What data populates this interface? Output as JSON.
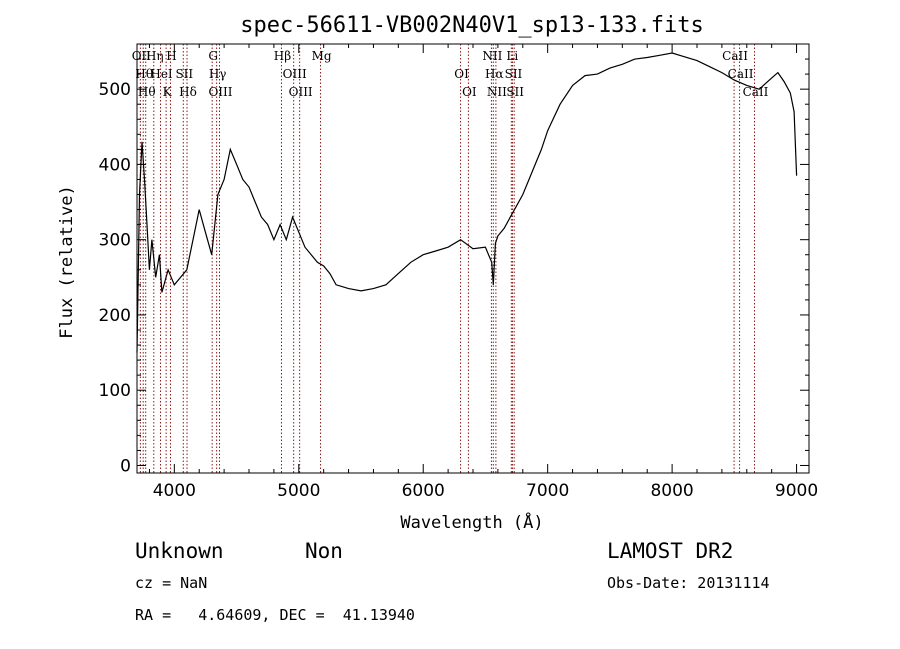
{
  "chart_data": {
    "type": "line",
    "title": "spec-56611-VB002N40V1_sp13-133.fits",
    "xlabel": "Wavelength (Å)",
    "ylabel": "Flux (relative)",
    "xlim": [
      3700,
      9100
    ],
    "ylim": [
      -10,
      560
    ],
    "xticks": [
      4000,
      5000,
      6000,
      7000,
      8000,
      9000
    ],
    "xtick_labels": [
      "4000",
      "5000",
      "6000",
      "7000",
      "8000",
      "9000"
    ],
    "yticks": [
      0,
      100,
      200,
      300,
      400,
      500
    ],
    "ytick_labels": [
      "0",
      "100",
      "200",
      "300",
      "400",
      "500"
    ],
    "grid": false,
    "line_color": "#000000",
    "marker_color": "#8b1a1a",
    "series": [
      {
        "x": [
          3700,
          3720,
          3740,
          3760,
          3780,
          3800,
          3820,
          3850,
          3880,
          3900,
          3950,
          4000,
          4050,
          4100,
          4150,
          4200,
          4250,
          4300,
          4350,
          4400,
          4450,
          4500,
          4550,
          4600,
          4650,
          4700,
          4750,
          4800,
          4850,
          4900,
          4950,
          5000,
          5050,
          5100,
          5150,
          5200,
          5250,
          5300,
          5400,
          5500,
          5600,
          5700,
          5800,
          5900,
          6000,
          6100,
          6200,
          6300,
          6400,
          6500,
          6550,
          6563,
          6580,
          6600,
          6650,
          6700,
          6750,
          6800,
          6850,
          6900,
          6950,
          7000,
          7100,
          7200,
          7300,
          7400,
          7500,
          7600,
          7700,
          7800,
          7900,
          8000,
          8100,
          8200,
          8300,
          8400,
          8500,
          8600,
          8700,
          8800,
          8850,
          8900,
          8950,
          8980,
          9000
        ],
        "y": [
          150,
          360,
          430,
          380,
          320,
          260,
          300,
          250,
          280,
          230,
          260,
          240,
          250,
          260,
          300,
          340,
          310,
          280,
          360,
          380,
          420,
          400,
          380,
          370,
          350,
          330,
          320,
          300,
          320,
          300,
          330,
          310,
          290,
          280,
          270,
          265,
          255,
          240,
          235,
          232,
          235,
          240,
          255,
          270,
          280,
          285,
          290,
          300,
          288,
          290,
          270,
          240,
          295,
          305,
          315,
          330,
          345,
          360,
          380,
          400,
          420,
          445,
          480,
          505,
          518,
          520,
          528,
          533,
          540,
          542,
          545,
          548,
          543,
          538,
          530,
          522,
          512,
          505,
          500,
          515,
          522,
          510,
          495,
          470,
          385
        ]
      }
    ],
    "line_markers": [
      {
        "wavelength": 3727,
        "labels": [
          "OII"
        ]
      },
      {
        "wavelength": 3750,
        "labels": [
          "Hθ"
        ]
      },
      {
        "wavelength": 3770,
        "labels": [
          "Hθ"
        ]
      },
      {
        "wavelength": 3835,
        "labels": [
          "Hη"
        ]
      },
      {
        "wavelength": 3889,
        "labels": [
          "HeI"
        ]
      },
      {
        "wavelength": 3934,
        "labels": [
          "K"
        ]
      },
      {
        "wavelength": 3969,
        "labels": [
          "H"
        ]
      },
      {
        "wavelength": 4072,
        "labels": [
          "SII"
        ]
      },
      {
        "wavelength": 4102,
        "labels": [
          "Hδ"
        ]
      },
      {
        "wavelength": 4304,
        "labels": [
          "G"
        ]
      },
      {
        "wavelength": 4340,
        "labels": [
          "Hγ"
        ]
      },
      {
        "wavelength": 4363,
        "labels": [
          "OIII"
        ]
      },
      {
        "wavelength": 4861,
        "labels": [
          "Hβ"
        ]
      },
      {
        "wavelength": 4959,
        "labels": [
          "OIII"
        ]
      },
      {
        "wavelength": 5007,
        "labels": [
          "OIII"
        ]
      },
      {
        "wavelength": 5175,
        "labels": [
          "Mg"
        ]
      },
      {
        "wavelength": 6300,
        "labels": [
          "OI"
        ]
      },
      {
        "wavelength": 6363,
        "labels": [
          "OI"
        ]
      },
      {
        "wavelength": 6548,
        "labels": [
          "NII"
        ]
      },
      {
        "wavelength": 6563,
        "labels": [
          "Hα"
        ]
      },
      {
        "wavelength": 6584,
        "labels": [
          "NII"
        ]
      },
      {
        "wavelength": 6708,
        "labels": [
          "Li"
        ]
      },
      {
        "wavelength": 6717,
        "labels": [
          "SII"
        ]
      },
      {
        "wavelength": 6731,
        "labels": [
          "SII"
        ]
      },
      {
        "wavelength": 8498,
        "labels": [
          "CaII"
        ]
      },
      {
        "wavelength": 8542,
        "labels": [
          "CaII"
        ]
      },
      {
        "wavelength": 8662,
        "labels": [
          "CaII"
        ]
      }
    ]
  },
  "info": {
    "class": "Unknown",
    "subclass": "Non",
    "survey": "LAMOST DR2",
    "cz": "cz = NaN",
    "obs_date": "Obs-Date: 20131114",
    "radec": "RA =   4.64609, DEC =  41.13940"
  }
}
